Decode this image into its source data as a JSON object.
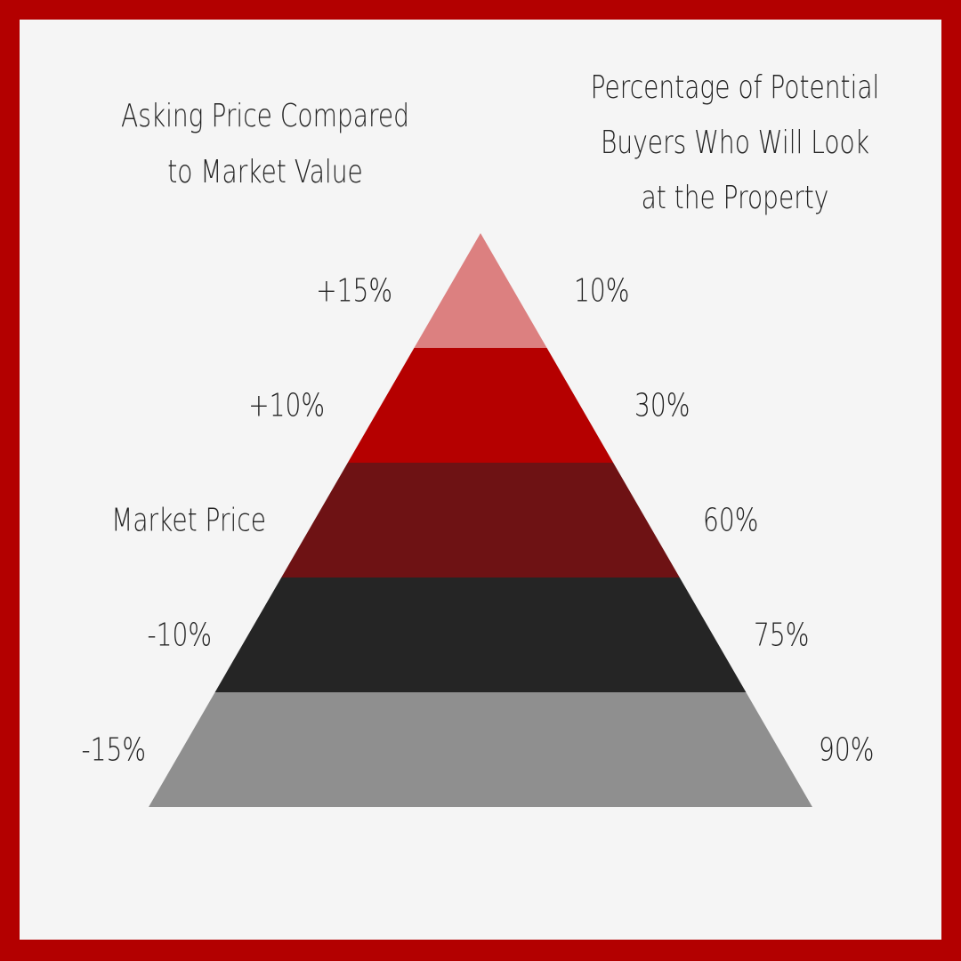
{
  "left_header": {
    "lines": [
      "Asking Price Compared",
      "to Market Value"
    ]
  },
  "right_header": {
    "lines": [
      "Percentage of Potential",
      "Buyers Who Will Look",
      "at the Property"
    ]
  },
  "levels": [
    {
      "asking": "+15%",
      "buyers": "10%",
      "color": "#dc8080"
    },
    {
      "asking": "+10%",
      "buyers": "30%",
      "color": "#b50000"
    },
    {
      "asking": "Market Price",
      "buyers": "60%",
      "color": "#6e1214"
    },
    {
      "asking": "-10%",
      "buyers": "75%",
      "color": "#252525"
    },
    {
      "asking": "-15%",
      "buyers": "90%",
      "color": "#8f8f8f"
    }
  ]
}
